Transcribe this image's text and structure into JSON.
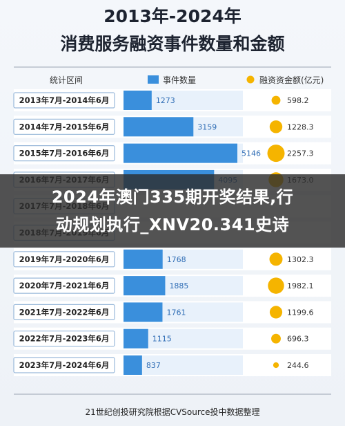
{
  "title_line1": "2013年-2024年",
  "title_line2": "消费服务融资事件数量和金额",
  "header": {
    "period": "统计区间",
    "events": "事件数量",
    "amount": "融资资金额(亿元)"
  },
  "overlay": {
    "line1": "2024年澳门335期开奖结果,行",
    "line2": "动规划执行_XNV20.341史诗"
  },
  "source": "21世纪创投研究院根据CVSource投中数据整理",
  "colors": {
    "bar": "#3a8fdc",
    "bar_light": "#bcd8f3",
    "bubble": "#f5b400",
    "row_bg": "#ffffff",
    "label_border": "#9ab9da"
  },
  "chart_data": {
    "type": "bar",
    "categories": [
      "2013年7月-2014年6月",
      "2014年7月-2015年6月",
      "2015年7月-2016年6月",
      "2016年7月-2017年6月",
      "2017年7月-2018年6月",
      "2018年7月-2019年6月",
      "2019年7月-2020年6月",
      "2020年7月-2021年6月",
      "2021年7月-2022年6月",
      "2022年7月-2023年6月",
      "2023年7月-2024年6月"
    ],
    "series": [
      {
        "name": "事件数量",
        "values": [
          1273,
          3159,
          5146,
          4095,
          null,
          null,
          1768,
          1885,
          1761,
          1115,
          837
        ]
      },
      {
        "name": "融资资金额(亿元)",
        "values": [
          598.2,
          1228.3,
          2257.3,
          1673.0,
          null,
          null,
          1302.3,
          1982.1,
          1199.6,
          696.3,
          244.6
        ]
      }
    ],
    "value_labels": {
      "events": [
        "1273",
        "3159",
        "5146",
        "4095",
        "",
        "",
        "1768",
        "1885",
        "1761",
        "1115",
        "837"
      ],
      "amount": [
        "598.2",
        "1228.3",
        "2257.3",
        "1673.0",
        "",
        "",
        "1302.3",
        "1982.1",
        "1199.6",
        "696.3",
        "244.6"
      ]
    },
    "legend": "top"
  }
}
